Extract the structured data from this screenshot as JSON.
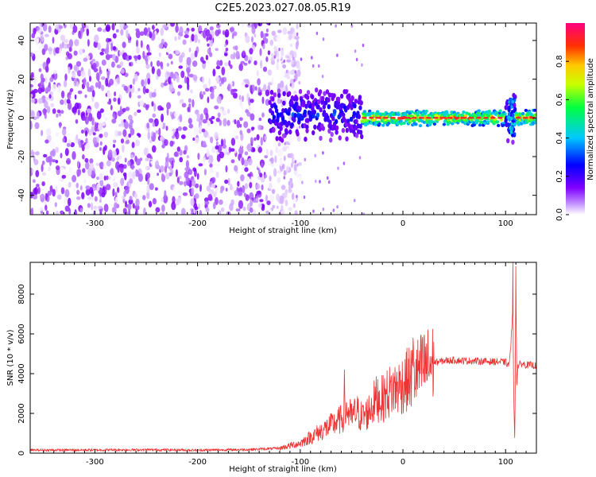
{
  "title": "C2E5.2023.027.08.05.R19",
  "chart_data": [
    {
      "type": "heatmap",
      "xlabel": "Height of straight line (km)",
      "ylabel": "Frequency (Hz)",
      "xlim": [
        -363,
        130
      ],
      "ylim": [
        -50,
        49
      ],
      "xticks": [
        -300,
        -200,
        -100,
        0,
        100
      ],
      "yticks": [
        -40,
        -20,
        0,
        20,
        40
      ],
      "colorbar": {
        "label": "Normalized spectral amplitude",
        "range": [
          0,
          1
        ],
        "ticks": [
          0.0,
          0.2,
          0.4,
          0.6,
          0.8
        ],
        "tick_labels": [
          "0.0",
          "0.2",
          "0.4",
          "0.6",
          "0.8"
        ],
        "colormap": [
          "#ffffff",
          "#8000ff",
          "#0000ff",
          "#00c8ff",
          "#00ff00",
          "#ffff00",
          "#ff8000",
          "#ff0000",
          "#ff0080"
        ]
      },
      "regions": [
        {
          "x": [
            -363,
            -130
          ],
          "description": "scattered noise",
          "amplitude_max": 0.15
        },
        {
          "x": [
            -130,
            -40
          ],
          "frequency_center": 2,
          "amplitude_max": 0.35
        },
        {
          "x": [
            -40,
            100
          ],
          "frequency_center": 0,
          "amplitude_max": 1.0
        },
        {
          "x": [
            100,
            110
          ],
          "frequency_center": 0,
          "amplitude_max": 0.4
        },
        {
          "x": [
            110,
            130
          ],
          "frequency_center": 0,
          "amplitude_max": 1.0
        }
      ]
    },
    {
      "type": "line",
      "xlabel": "Height of straight line (km)",
      "ylabel": "SNR (10 * v/v)",
      "xlim": [
        -363,
        130
      ],
      "ylim": [
        0,
        9600
      ],
      "xticks": [
        -300,
        -200,
        -100,
        0,
        100
      ],
      "yticks": [
        0,
        2000,
        4000,
        6000,
        8000
      ],
      "series": [
        {
          "color": "#ee3333",
          "x": [
            -363,
            -300,
            -250,
            -200,
            -150,
            -120,
            -100,
            -90,
            -80,
            -70,
            -60,
            -55,
            -50,
            -45,
            -40,
            -35,
            -30,
            -25,
            -20,
            -15,
            -10,
            -5,
            0,
            5,
            10,
            15,
            20,
            25,
            30,
            40,
            50,
            60,
            70,
            80,
            90,
            100,
            103,
            105,
            107,
            108,
            109,
            110,
            111,
            112,
            115,
            120,
            125,
            130
          ],
          "y": [
            150,
            160,
            170,
            150,
            180,
            250,
            500,
            800,
            1100,
            1400,
            1700,
            2200,
            1800,
            2100,
            1800,
            2000,
            2400,
            2800,
            2700,
            3000,
            3200,
            3300,
            3500,
            3700,
            3900,
            4100,
            4300,
            4450,
            4550,
            4650,
            4680,
            4650,
            4640,
            4620,
            4600,
            4580,
            4400,
            5200,
            7500,
            2500,
            600,
            8500,
            3500,
            4400,
            4500,
            4450,
            4420,
            4400
          ],
          "spikes": [
            {
              "x": -57,
              "y": 4200
            },
            {
              "x": 10,
              "y": 5800
            },
            {
              "x": 107,
              "y": 9600
            },
            {
              "x": 110,
              "y": 9400
            }
          ]
        }
      ]
    }
  ]
}
